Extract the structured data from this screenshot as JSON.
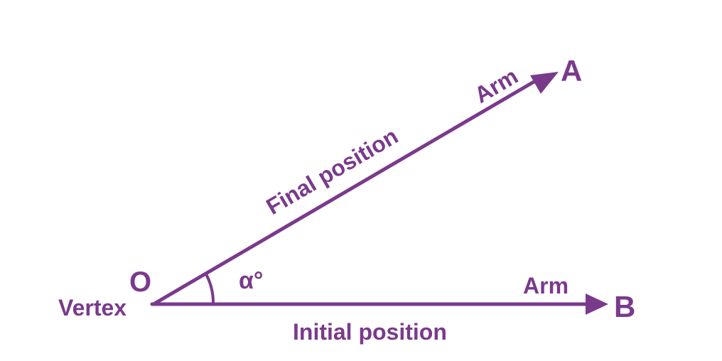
{
  "diagram": {
    "color": "#7A3A8C",
    "vertex_letter": "O",
    "vertex_label": "Vertex",
    "point_a": "A",
    "point_b": "B",
    "angle_label": "α°",
    "arm_a_label": "Arm",
    "arm_b_label": "Arm",
    "final_position_label": "Final position",
    "initial_position_label": "Initial position"
  }
}
